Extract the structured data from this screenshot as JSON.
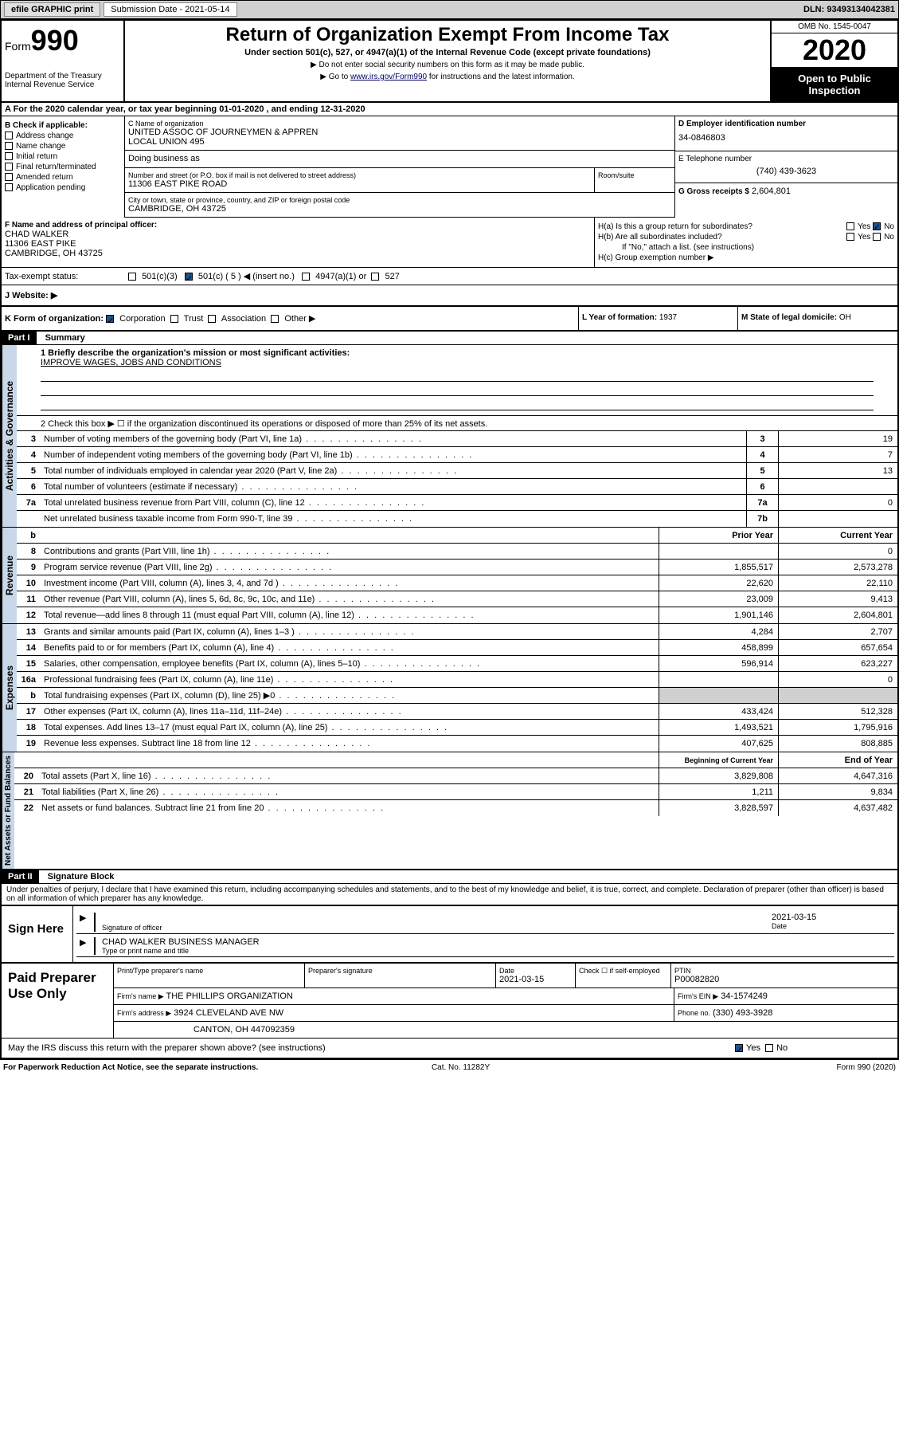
{
  "topbar": {
    "efile": "efile GRAPHIC print",
    "sub_label": "Submission Date - 2021-05-14",
    "dln": "DLN: 93493134042381"
  },
  "header": {
    "form_prefix": "Form",
    "form_num": "990",
    "dept": "Department of the Treasury\nInternal Revenue Service",
    "title": "Return of Organization Exempt From Income Tax",
    "subtitle": "Under section 501(c), 527, or 4947(a)(1) of the Internal Revenue Code (except private foundations)",
    "note1": "▶ Do not enter social security numbers on this form as it may be made public.",
    "note2_pre": "▶ Go to ",
    "note2_link": "www.irs.gov/Form990",
    "note2_post": " for instructions and the latest information.",
    "omb": "OMB No. 1545-0047",
    "year": "2020",
    "inspect": "Open to Public Inspection"
  },
  "rowA": "A For the 2020 calendar year, or tax year beginning 01-01-2020   , and ending 12-31-2020",
  "B": {
    "label": "B Check if applicable:",
    "items": [
      "Address change",
      "Name change",
      "Initial return",
      "Final return/terminated",
      "Amended return",
      "Application pending"
    ]
  },
  "C": {
    "name_lbl": "C Name of organization",
    "name": "UNITED ASSOC OF JOURNEYMEN & APPREN\nLOCAL UNION 495",
    "dba_lbl": "Doing business as",
    "addr_lbl": "Number and street (or P.O. box if mail is not delivered to street address)",
    "addr": "11306 EAST PIKE ROAD",
    "room_lbl": "Room/suite",
    "city_lbl": "City or town, state or province, country, and ZIP or foreign postal code",
    "city": "CAMBRIDGE, OH  43725"
  },
  "D": {
    "lbl": "D Employer identification number",
    "val": "34-0846803"
  },
  "E": {
    "lbl": "E Telephone number",
    "val": "(740) 439-3623"
  },
  "G": {
    "lbl": "G Gross receipts $",
    "val": "2,604,801"
  },
  "F": {
    "lbl": "F  Name and address of principal officer:",
    "name": "CHAD WALKER",
    "addr1": "11306 EAST PIKE",
    "addr2": "CAMBRIDGE, OH  43725"
  },
  "H": {
    "a": "H(a)  Is this a group return for subordinates?",
    "b": "H(b)  Are all subordinates included?",
    "b_note": "If \"No,\" attach a list. (see instructions)",
    "c": "H(c)  Group exemption number ▶"
  },
  "I": {
    "lbl": "Tax-exempt status:",
    "opts": [
      "501(c)(3)",
      "501(c) ( 5 ) ◀ (insert no.)",
      "4947(a)(1) or",
      "527"
    ]
  },
  "J": {
    "lbl": "J   Website: ▶"
  },
  "K": {
    "lbl": "K Form of organization:",
    "opts": [
      "Corporation",
      "Trust",
      "Association",
      "Other ▶"
    ]
  },
  "L": {
    "lbl": "L Year of formation:",
    "val": "1937"
  },
  "M": {
    "lbl": "M State of legal domicile:",
    "val": "OH"
  },
  "part1": {
    "hdr": "Part I",
    "title": "Summary",
    "line1_lbl": "1  Briefly describe the organization's mission or most significant activities:",
    "mission": "IMPROVE WAGES, JOBS AND CONDITIONS",
    "line2": "2   Check this box ▶ ☐  if the organization discontinued its operations or disposed of more than 25% of its net assets.",
    "vert1": "Activities & Governance",
    "vert2": "Revenue",
    "vert3": "Expenses",
    "vert4": "Net Assets or Fund Balances",
    "gov_lines": [
      {
        "n": "3",
        "t": "Number of voting members of the governing body (Part VI, line 1a)",
        "b": "3",
        "v": "19"
      },
      {
        "n": "4",
        "t": "Number of independent voting members of the governing body (Part VI, line 1b)",
        "b": "4",
        "v": "7"
      },
      {
        "n": "5",
        "t": "Total number of individuals employed in calendar year 2020 (Part V, line 2a)",
        "b": "5",
        "v": "13"
      },
      {
        "n": "6",
        "t": "Total number of volunteers (estimate if necessary)",
        "b": "6",
        "v": ""
      },
      {
        "n": "7a",
        "t": "Total unrelated business revenue from Part VIII, column (C), line 12",
        "b": "7a",
        "v": "0"
      },
      {
        "n": "",
        "t": "Net unrelated business taxable income from Form 990-T, line 39",
        "b": "7b",
        "v": ""
      }
    ],
    "col_hdrs": {
      "prior": "Prior Year",
      "current": "Current Year"
    },
    "rev_lines": [
      {
        "n": "8",
        "t": "Contributions and grants (Part VIII, line 1h)",
        "p": "",
        "c": "0"
      },
      {
        "n": "9",
        "t": "Program service revenue (Part VIII, line 2g)",
        "p": "1,855,517",
        "c": "2,573,278"
      },
      {
        "n": "10",
        "t": "Investment income (Part VIII, column (A), lines 3, 4, and 7d )",
        "p": "22,620",
        "c": "22,110"
      },
      {
        "n": "11",
        "t": "Other revenue (Part VIII, column (A), lines 5, 6d, 8c, 9c, 10c, and 11e)",
        "p": "23,009",
        "c": "9,413"
      },
      {
        "n": "12",
        "t": "Total revenue—add lines 8 through 11 (must equal Part VIII, column (A), line 12)",
        "p": "1,901,146",
        "c": "2,604,801"
      }
    ],
    "exp_lines": [
      {
        "n": "13",
        "t": "Grants and similar amounts paid (Part IX, column (A), lines 1–3 )",
        "p": "4,284",
        "c": "2,707"
      },
      {
        "n": "14",
        "t": "Benefits paid to or for members (Part IX, column (A), line 4)",
        "p": "458,899",
        "c": "657,654"
      },
      {
        "n": "15",
        "t": "Salaries, other compensation, employee benefits (Part IX, column (A), lines 5–10)",
        "p": "596,914",
        "c": "623,227"
      },
      {
        "n": "16a",
        "t": "Professional fundraising fees (Part IX, column (A), line 11e)",
        "p": "",
        "c": "0"
      },
      {
        "n": "b",
        "t": "Total fundraising expenses (Part IX, column (D), line 25)  ▶0",
        "p": "shaded",
        "c": "shaded"
      },
      {
        "n": "17",
        "t": "Other expenses (Part IX, column (A), lines 11a–11d, 11f–24e)",
        "p": "433,424",
        "c": "512,328"
      },
      {
        "n": "18",
        "t": "Total expenses. Add lines 13–17 (must equal Part IX, column (A), line 25)",
        "p": "1,493,521",
        "c": "1,795,916"
      },
      {
        "n": "19",
        "t": "Revenue less expenses. Subtract line 18 from line 12",
        "p": "407,625",
        "c": "808,885"
      }
    ],
    "net_hdrs": {
      "begin": "Beginning of Current Year",
      "end": "End of Year"
    },
    "net_lines": [
      {
        "n": "20",
        "t": "Total assets (Part X, line 16)",
        "p": "3,829,808",
        "c": "4,647,316"
      },
      {
        "n": "21",
        "t": "Total liabilities (Part X, line 26)",
        "p": "1,211",
        "c": "9,834"
      },
      {
        "n": "22",
        "t": "Net assets or fund balances. Subtract line 21 from line 20",
        "p": "3,828,597",
        "c": "4,637,482"
      }
    ]
  },
  "part2": {
    "hdr": "Part II",
    "title": "Signature Block",
    "decl": "Under penalties of perjury, I declare that I have examined this return, including accompanying schedules and statements, and to the best of my knowledge and belief, it is true, correct, and complete. Declaration of preparer (other than officer) is based on all information of which preparer has any knowledge."
  },
  "sign": {
    "here": "Sign Here",
    "sig_lbl": "Signature of officer",
    "date": "2021-03-15",
    "date_lbl": "Date",
    "name": "CHAD WALKER  BUSINESS MANAGER",
    "name_lbl": "Type or print name and title"
  },
  "prep": {
    "title": "Paid Preparer Use Only",
    "h1": "Print/Type preparer's name",
    "h2": "Preparer's signature",
    "h3": "Date",
    "date": "2021-03-15",
    "h4": "Check ☐ if self-employed",
    "h5": "PTIN",
    "ptin": "P00082820",
    "firm_lbl": "Firm's name    ▶",
    "firm": "THE PHILLIPS ORGANIZATION",
    "ein_lbl": "Firm's EIN ▶",
    "ein": "34-1574249",
    "addr_lbl": "Firm's address ▶",
    "addr1": "3924 CLEVELAND AVE NW",
    "addr2": "CANTON, OH  447092359",
    "phone_lbl": "Phone no.",
    "phone": "(330) 493-3928",
    "discuss": "May the IRS discuss this return with the preparer shown above? (see instructions)"
  },
  "footer": {
    "left": "For Paperwork Reduction Act Notice, see the separate instructions.",
    "mid": "Cat. No. 11282Y",
    "right": "Form 990 (2020)"
  }
}
